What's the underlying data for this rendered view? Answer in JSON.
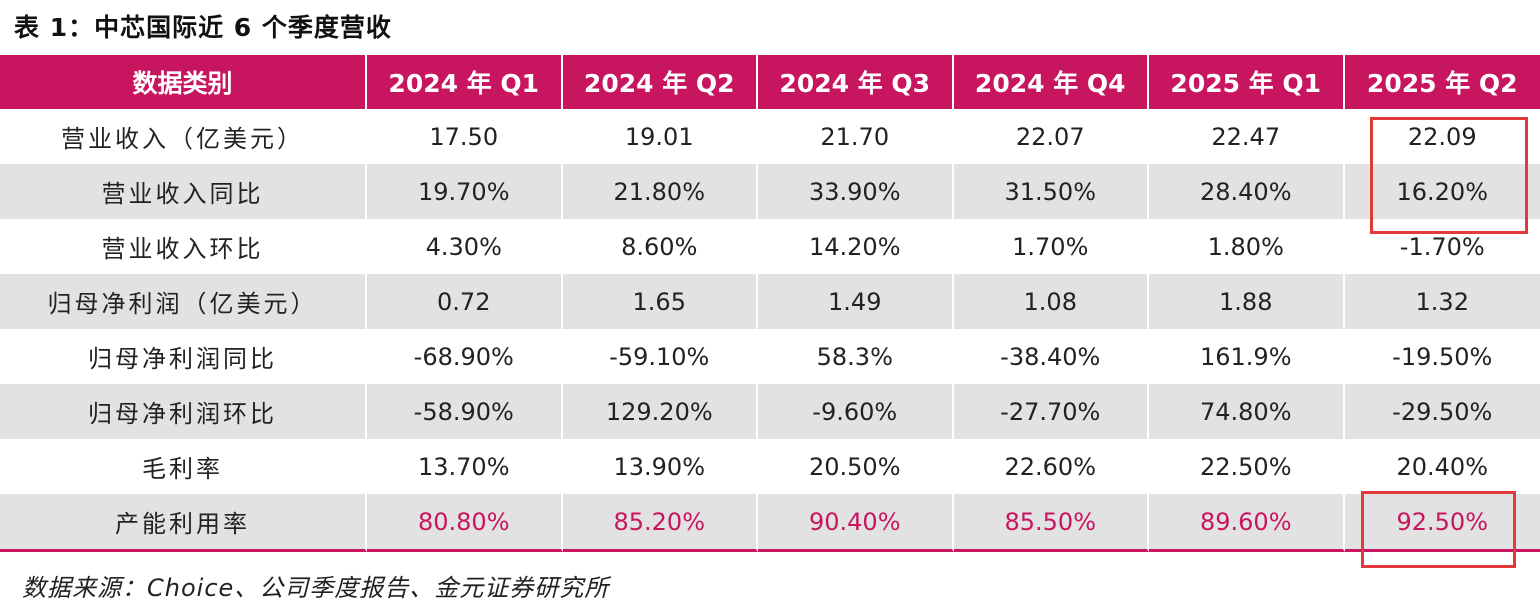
{
  "title": "表 1：中芯国际近 6 个季度营收",
  "columns": [
    "数据类别",
    "2024 年 Q1",
    "2024 年 Q2",
    "2024 年 Q3",
    "2024 年 Q4",
    "2025 年 Q1",
    "2025 年 Q2"
  ],
  "rows": [
    {
      "label": "营业收入（亿美元）",
      "values": [
        "17.50",
        "19.01",
        "21.70",
        "22.07",
        "22.47",
        "22.09"
      ]
    },
    {
      "label": "营业收入同比",
      "values": [
        "19.70%",
        "21.80%",
        "33.90%",
        "31.50%",
        "28.40%",
        "16.20%"
      ]
    },
    {
      "label": "营业收入环比",
      "values": [
        "4.30%",
        "8.60%",
        "14.20%",
        "1.70%",
        "1.80%",
        "-1.70%"
      ]
    },
    {
      "label": "归母净利润（亿美元）",
      "values": [
        "0.72",
        "1.65",
        "1.49",
        "1.08",
        "1.88",
        "1.32"
      ]
    },
    {
      "label": "归母净利润同比",
      "values": [
        "-68.90%",
        "-59.10%",
        "58.3%",
        "-38.40%",
        "161.9%",
        "-19.50%"
      ]
    },
    {
      "label": "归母净利润环比",
      "values": [
        "-58.90%",
        "129.20%",
        "-9.60%",
        "-27.70%",
        "74.80%",
        "-29.50%"
      ]
    },
    {
      "label": "毛利率",
      "values": [
        "13.70%",
        "13.90%",
        "20.50%",
        "22.60%",
        "22.50%",
        "20.40%"
      ]
    },
    {
      "label": "产能利用率",
      "values": [
        "80.80%",
        "85.20%",
        "90.40%",
        "85.50%",
        "89.60%",
        "92.50%"
      ]
    }
  ],
  "source": "数据来源：Choice、公司季度报告、金元证券研究所",
  "colors": {
    "header_bg": "#c8155f",
    "highlight_text": "#c8155f",
    "stripe": "#e2e2e2",
    "annotation_box": "#e23a3a"
  }
}
